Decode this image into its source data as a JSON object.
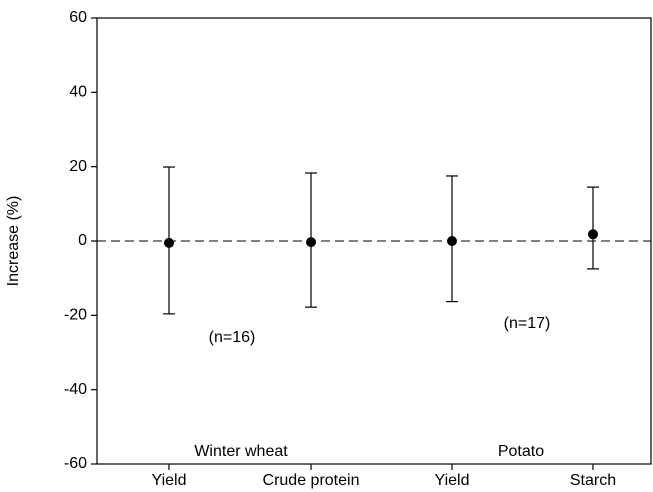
{
  "chart_data": {
    "type": "errorbar",
    "y_label": "Increase (%)",
    "categories": [
      "Yield",
      "Crude protein",
      "Yield",
      "Starch"
    ],
    "values": [
      -0.5,
      -0.3,
      0,
      1.8
    ],
    "error_low": [
      -19.6,
      -17.8,
      -16.3,
      -7.5
    ],
    "error_high": [
      19.9,
      18.3,
      17.5,
      14.5
    ],
    "color": "#000000",
    "ylim": [
      -60,
      60
    ],
    "yticks": [
      -60,
      -40,
      -20,
      0,
      20,
      40,
      60
    ],
    "reference_line": 0,
    "annotations": [
      "(n=16)",
      "(n=17)",
      "Winter wheat",
      "Potato"
    ]
  }
}
